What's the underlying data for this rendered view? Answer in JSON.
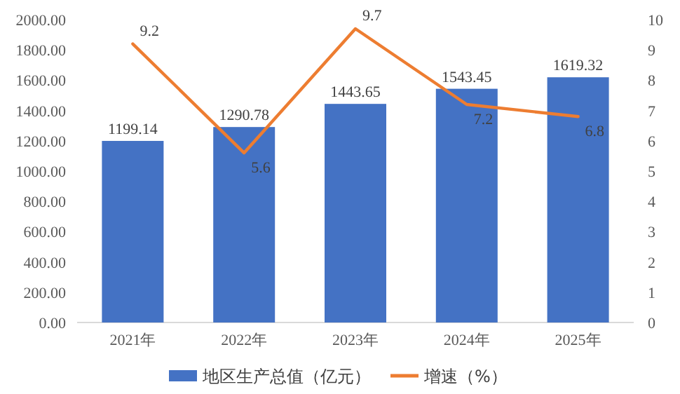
{
  "chart_data": {
    "type": "bar",
    "categories": [
      "2021年",
      "2022年",
      "2023年",
      "2024年",
      "2025年"
    ],
    "series": [
      {
        "name": "地区生产总值（亿元）",
        "color": "#4472c4",
        "values": [
          1199.14,
          1290.78,
          1443.65,
          1543.45,
          1619.32
        ]
      },
      {
        "name": "增速（%）",
        "type": "line",
        "axis": "y2",
        "color": "#ed7d31",
        "values": [
          9.2,
          5.6,
          9.7,
          7.2,
          6.8
        ]
      }
    ],
    "ylim": [
      0,
      2000
    ],
    "yticks": [
      {
        "value": 0,
        "label": "0.00"
      },
      {
        "value": 200,
        "label": "200.00"
      },
      {
        "value": 400,
        "label": "400.00"
      },
      {
        "value": 600,
        "label": "600.00"
      },
      {
        "value": 800,
        "label": "800.00"
      },
      {
        "value": 1000,
        "label": "1000.00"
      },
      {
        "value": 1200,
        "label": "1200.00"
      },
      {
        "value": 1400,
        "label": "1400.00"
      },
      {
        "value": 1600,
        "label": "1600.00"
      },
      {
        "value": 1800,
        "label": "1800.00"
      },
      {
        "value": 2000,
        "label": "2000.00"
      }
    ],
    "y2lim": [
      0,
      10
    ],
    "y2ticks": [
      0,
      1,
      2,
      3,
      4,
      5,
      6,
      7,
      8,
      9,
      10
    ],
    "data_labels": true,
    "legend": "bottom"
  }
}
